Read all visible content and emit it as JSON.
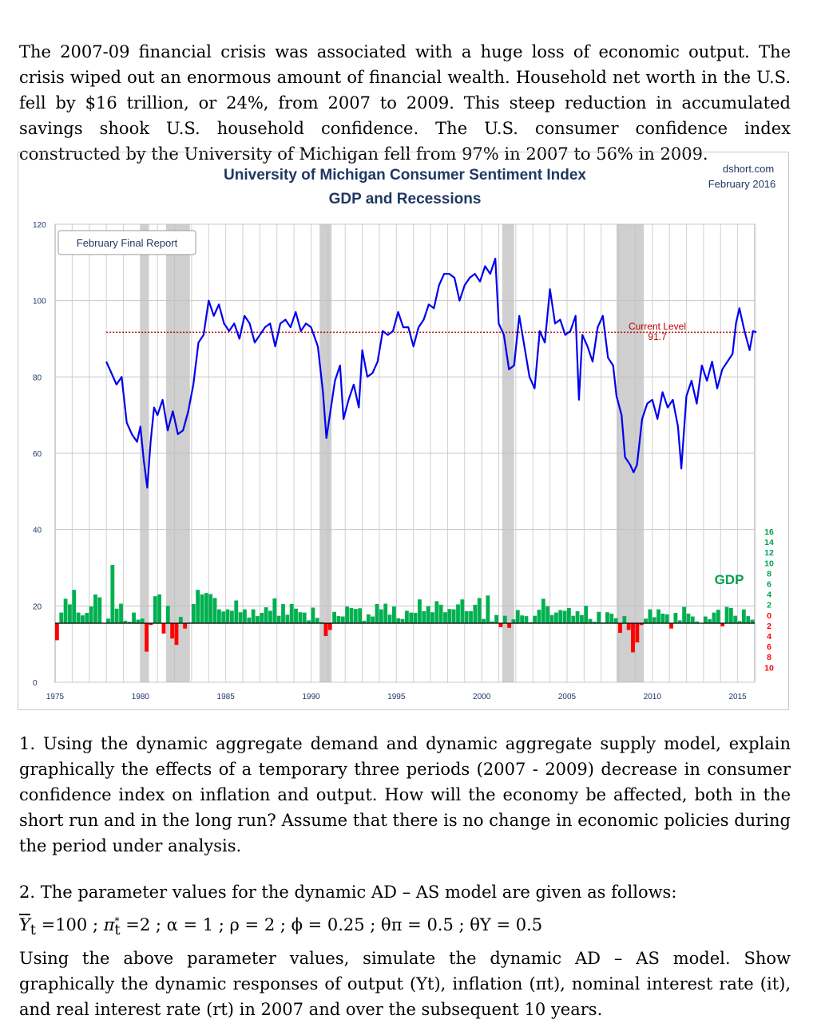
{
  "intro_text": "The 2007-09 financial crisis was associated with a huge loss of economic output. The crisis wiped out an enormous amount of financial wealth. Household net worth in the U.S. fell by $16 trillion, or 24%, from 2007 to 2009. This steep reduction in accumulated savings shook U.S. household confidence. The U.S. consumer confidence index constructed by the University of Michigan fell from 97% in 2007 to 56% in 2009.",
  "question1": "1. Using the dynamic aggregate demand and dynamic aggregate supply model, explain graphically the effects of a temporary three periods (2007 - 2009) decrease in consumer confidence index on inflation and output. How will the economy be affected, both in the short run and in the long run? Assume that there is no change in economic policies during the period under analysis.",
  "question2": {
    "heading": "2. The parameter values for the dynamic AD – AS model are given as follows:",
    "params": {
      "ybar": "Y",
      "ybar_sub": "t",
      "ybar_val": " =100 ; ",
      "pi_star": "π",
      "pi_star_sup": "*",
      "pi_star_sub": "t",
      "pi_star_val": " =2 ; α = 1 ; ρ = 2 ; ϕ = 0.25 ; θπ = 0.5 ; θY = 0.5"
    },
    "body": "Using the above parameter values, simulate the dynamic AD – AS model. Show graphically the dynamic responses of output (Yt), inflation (πt), nominal interest rate (it), and real interest rate (rt) in 2007 and over the subsequent 10 years."
  },
  "chart_data": {
    "type": "line",
    "title": "University of Michigan Consumer Sentiment Index",
    "subtitle": "GDP and Recessions",
    "source": "dshort.com",
    "date": "February 2016",
    "report_label": "February Final Report",
    "current_level_label": "Current Level",
    "current_level_value": "91.7",
    "gdp_label": "GDP",
    "ylim": [
      0,
      120
    ],
    "y_ticks": [
      "120",
      "100",
      "80",
      "60",
      "40",
      "20",
      "0"
    ],
    "xlim": [
      1975,
      2016
    ],
    "x_ticks": [
      "1975",
      "1980",
      "1985",
      "1990",
      "1995",
      "2000",
      "2005",
      "2010",
      "2015"
    ],
    "gdp_axis_ticks": [
      "16",
      "14",
      "12",
      "10",
      "8",
      "6",
      "4",
      "2",
      "0",
      "2",
      "4",
      "6",
      "8",
      "10"
    ],
    "recessions": [
      [
        1980.0,
        1980.5
      ],
      [
        1981.5,
        1982.9
      ],
      [
        1990.5,
        1991.2
      ],
      [
        2001.2,
        2001.9
      ],
      [
        2007.9,
        2009.5
      ]
    ],
    "sentiment": {
      "name": "Consumer Sentiment",
      "points": [
        [
          1978.0,
          84
        ],
        [
          1978.3,
          81
        ],
        [
          1978.6,
          78
        ],
        [
          1978.9,
          80
        ],
        [
          1979.2,
          68
        ],
        [
          1979.5,
          65
        ],
        [
          1979.8,
          63
        ],
        [
          1980.0,
          67
        ],
        [
          1980.2,
          58
        ],
        [
          1980.4,
          51
        ],
        [
          1980.6,
          63
        ],
        [
          1980.8,
          72
        ],
        [
          1981.0,
          70
        ],
        [
          1981.3,
          74
        ],
        [
          1981.6,
          66
        ],
        [
          1981.9,
          71
        ],
        [
          1982.2,
          65
        ],
        [
          1982.5,
          66
        ],
        [
          1982.8,
          71
        ],
        [
          1983.1,
          78
        ],
        [
          1983.4,
          89
        ],
        [
          1983.7,
          91
        ],
        [
          1984.0,
          100
        ],
        [
          1984.3,
          96
        ],
        [
          1984.6,
          99
        ],
        [
          1984.9,
          94
        ],
        [
          1985.2,
          92
        ],
        [
          1985.5,
          94
        ],
        [
          1985.8,
          90
        ],
        [
          1986.1,
          96
        ],
        [
          1986.4,
          94
        ],
        [
          1986.7,
          89
        ],
        [
          1987.0,
          91
        ],
        [
          1987.3,
          93
        ],
        [
          1987.6,
          94
        ],
        [
          1987.9,
          88
        ],
        [
          1988.2,
          94
        ],
        [
          1988.5,
          95
        ],
        [
          1988.8,
          93
        ],
        [
          1989.1,
          97
        ],
        [
          1989.4,
          92
        ],
        [
          1989.7,
          94
        ],
        [
          1990.0,
          93
        ],
        [
          1990.4,
          88
        ],
        [
          1990.7,
          76
        ],
        [
          1990.9,
          64
        ],
        [
          1991.1,
          70
        ],
        [
          1991.4,
          79
        ],
        [
          1991.7,
          83
        ],
        [
          1991.9,
          69
        ],
        [
          1992.2,
          74
        ],
        [
          1992.5,
          78
        ],
        [
          1992.8,
          72
        ],
        [
          1993.0,
          87
        ],
        [
          1993.3,
          80
        ],
        [
          1993.6,
          81
        ],
        [
          1993.9,
          84
        ],
        [
          1994.2,
          92
        ],
        [
          1994.5,
          91
        ],
        [
          1994.8,
          92
        ],
        [
          1995.1,
          97
        ],
        [
          1995.4,
          93
        ],
        [
          1995.7,
          93
        ],
        [
          1996.0,
          88
        ],
        [
          1996.3,
          93
        ],
        [
          1996.6,
          95
        ],
        [
          1996.9,
          99
        ],
        [
          1997.2,
          98
        ],
        [
          1997.5,
          104
        ],
        [
          1997.8,
          107
        ],
        [
          1998.1,
          107
        ],
        [
          1998.4,
          106
        ],
        [
          1998.7,
          100
        ],
        [
          1999.0,
          104
        ],
        [
          1999.3,
          106
        ],
        [
          1999.6,
          107
        ],
        [
          1999.9,
          105
        ],
        [
          2000.2,
          109
        ],
        [
          2000.5,
          107
        ],
        [
          2000.8,
          111
        ],
        [
          2001.0,
          94
        ],
        [
          2001.3,
          91
        ],
        [
          2001.6,
          82
        ],
        [
          2001.9,
          83
        ],
        [
          2002.2,
          96
        ],
        [
          2002.5,
          88
        ],
        [
          2002.8,
          80
        ],
        [
          2003.1,
          77
        ],
        [
          2003.4,
          92
        ],
        [
          2003.7,
          89
        ],
        [
          2004.0,
          103
        ],
        [
          2004.3,
          94
        ],
        [
          2004.6,
          95
        ],
        [
          2004.9,
          91
        ],
        [
          2005.2,
          92
        ],
        [
          2005.5,
          96
        ],
        [
          2005.7,
          74
        ],
        [
          2005.9,
          91
        ],
        [
          2006.2,
          88
        ],
        [
          2006.5,
          84
        ],
        [
          2006.8,
          93
        ],
        [
          2007.1,
          96
        ],
        [
          2007.4,
          85
        ],
        [
          2007.7,
          83
        ],
        [
          2007.9,
          75
        ],
        [
          2008.2,
          70
        ],
        [
          2008.4,
          59
        ],
        [
          2008.7,
          57
        ],
        [
          2008.9,
          55
        ],
        [
          2009.1,
          57
        ],
        [
          2009.4,
          69
        ],
        [
          2009.7,
          73
        ],
        [
          2010.0,
          74
        ],
        [
          2010.3,
          69
        ],
        [
          2010.6,
          76
        ],
        [
          2010.9,
          72
        ],
        [
          2011.2,
          74
        ],
        [
          2011.5,
          67
        ],
        [
          2011.7,
          56
        ],
        [
          2012.0,
          75
        ],
        [
          2012.3,
          79
        ],
        [
          2012.6,
          73
        ],
        [
          2012.9,
          83
        ],
        [
          2013.2,
          79
        ],
        [
          2013.5,
          84
        ],
        [
          2013.8,
          77
        ],
        [
          2014.1,
          82
        ],
        [
          2014.4,
          84
        ],
        [
          2014.7,
          86
        ],
        [
          2014.9,
          94
        ],
        [
          2015.1,
          98
        ],
        [
          2015.4,
          92
        ],
        [
          2015.7,
          87
        ],
        [
          2015.9,
          92
        ],
        [
          2016.1,
          91.7
        ]
      ]
    },
    "gdp_growth": {
      "name": "GDP",
      "values": [
        [
          1975.0,
          -4.8
        ],
        [
          1975.25,
          3.0
        ],
        [
          1975.5,
          6.9
        ],
        [
          1975.75,
          5.3
        ],
        [
          1976.0,
          9.4
        ],
        [
          1976.25,
          3.0
        ],
        [
          1976.5,
          2.2
        ],
        [
          1976.75,
          2.9
        ],
        [
          1977.0,
          4.7
        ],
        [
          1977.25,
          8.1
        ],
        [
          1977.5,
          7.3
        ],
        [
          1977.75,
          0.0
        ],
        [
          1978.0,
          1.3
        ],
        [
          1978.25,
          16.4
        ],
        [
          1978.5,
          4.1
        ],
        [
          1978.75,
          5.5
        ],
        [
          1979.0,
          0.7
        ],
        [
          1979.25,
          0.4
        ],
        [
          1979.5,
          3.0
        ],
        [
          1979.75,
          1.0
        ],
        [
          1980.0,
          1.3
        ],
        [
          1980.25,
          -8.0
        ],
        [
          1980.5,
          -0.5
        ],
        [
          1980.75,
          7.6
        ],
        [
          1981.0,
          8.1
        ],
        [
          1981.25,
          -2.9
        ],
        [
          1981.5,
          4.9
        ],
        [
          1981.75,
          -4.3
        ],
        [
          1982.0,
          -6.1
        ],
        [
          1982.25,
          1.8
        ],
        [
          1982.5,
          -1.5
        ],
        [
          1982.75,
          0.2
        ],
        [
          1983.0,
          5.4
        ],
        [
          1983.25,
          9.4
        ],
        [
          1983.5,
          8.1
        ],
        [
          1983.75,
          8.5
        ],
        [
          1984.0,
          8.2
        ],
        [
          1984.25,
          7.1
        ],
        [
          1984.5,
          3.9
        ],
        [
          1984.75,
          3.3
        ],
        [
          1985.0,
          3.9
        ],
        [
          1985.25,
          3.5
        ],
        [
          1985.5,
          6.4
        ],
        [
          1985.75,
          3.1
        ],
        [
          1986.0,
          3.9
        ],
        [
          1986.25,
          1.6
        ],
        [
          1986.5,
          3.9
        ],
        [
          1986.75,
          2.0
        ],
        [
          1987.0,
          2.9
        ],
        [
          1987.25,
          4.5
        ],
        [
          1987.5,
          3.5
        ],
        [
          1987.75,
          7.0
        ],
        [
          1988.0,
          2.1
        ],
        [
          1988.25,
          5.4
        ],
        [
          1988.5,
          2.4
        ],
        [
          1988.75,
          5.4
        ],
        [
          1989.0,
          4.1
        ],
        [
          1989.25,
          3.1
        ],
        [
          1989.5,
          3.0
        ],
        [
          1989.75,
          0.8
        ],
        [
          1990.0,
          4.4
        ],
        [
          1990.25,
          1.5
        ],
        [
          1990.5,
          0.3
        ],
        [
          1990.75,
          -3.6
        ],
        [
          1991.0,
          -1.9
        ],
        [
          1991.25,
          3.2
        ],
        [
          1991.5,
          2.0
        ],
        [
          1991.75,
          1.9
        ],
        [
          1992.0,
          4.7
        ],
        [
          1992.25,
          4.3
        ],
        [
          1992.5,
          4.0
        ],
        [
          1992.75,
          4.2
        ],
        [
          1993.0,
          0.7
        ],
        [
          1993.25,
          2.5
        ],
        [
          1993.5,
          1.9
        ],
        [
          1993.75,
          5.4
        ],
        [
          1994.0,
          3.9
        ],
        [
          1994.25,
          5.5
        ],
        [
          1994.5,
          2.4
        ],
        [
          1994.75,
          4.7
        ],
        [
          1995.0,
          1.4
        ],
        [
          1995.25,
          1.2
        ],
        [
          1995.5,
          3.5
        ],
        [
          1995.75,
          3.0
        ],
        [
          1996.0,
          2.9
        ],
        [
          1996.25,
          6.7
        ],
        [
          1996.5,
          3.4
        ],
        [
          1996.75,
          4.8
        ],
        [
          1997.0,
          3.1
        ],
        [
          1997.25,
          6.2
        ],
        [
          1997.5,
          5.2
        ],
        [
          1997.75,
          3.1
        ],
        [
          1998.0,
          4.0
        ],
        [
          1998.25,
          3.9
        ],
        [
          1998.5,
          5.3
        ],
        [
          1998.75,
          6.7
        ],
        [
          1999.0,
          3.4
        ],
        [
          1999.25,
          3.4
        ],
        [
          1999.5,
          5.2
        ],
        [
          1999.75,
          7.1
        ],
        [
          2000.0,
          1.2
        ],
        [
          2000.25,
          7.8
        ],
        [
          2000.5,
          0.5
        ],
        [
          2000.75,
          2.3
        ],
        [
          2001.0,
          -1.1
        ],
        [
          2001.25,
          2.1
        ],
        [
          2001.5,
          -1.3
        ],
        [
          2001.75,
          1.1
        ],
        [
          2002.0,
          3.7
        ],
        [
          2002.25,
          2.2
        ],
        [
          2002.5,
          2.0
        ],
        [
          2002.75,
          0.3
        ],
        [
          2003.0,
          2.1
        ],
        [
          2003.25,
          3.8
        ],
        [
          2003.5,
          6.9
        ],
        [
          2003.75,
          4.8
        ],
        [
          2004.0,
          2.3
        ],
        [
          2004.25,
          3.0
        ],
        [
          2004.5,
          3.7
        ],
        [
          2004.75,
          3.5
        ],
        [
          2005.0,
          4.3
        ],
        [
          2005.25,
          2.1
        ],
        [
          2005.5,
          3.4
        ],
        [
          2005.75,
          2.3
        ],
        [
          2006.0,
          4.9
        ],
        [
          2006.25,
          1.2
        ],
        [
          2006.5,
          0.4
        ],
        [
          2006.75,
          3.2
        ],
        [
          2007.0,
          0.2
        ],
        [
          2007.25,
          3.1
        ],
        [
          2007.5,
          2.7
        ],
        [
          2007.75,
          1.4
        ],
        [
          2008.0,
          -2.7
        ],
        [
          2008.25,
          2.0
        ],
        [
          2008.5,
          -1.9
        ],
        [
          2008.75,
          -8.2
        ],
        [
          2009.0,
          -5.4
        ],
        [
          2009.25,
          -0.5
        ],
        [
          2009.5,
          1.3
        ],
        [
          2009.75,
          3.9
        ],
        [
          2010.0,
          1.7
        ],
        [
          2010.25,
          3.9
        ],
        [
          2010.5,
          2.7
        ],
        [
          2010.75,
          2.5
        ],
        [
          2011.0,
          -1.5
        ],
        [
          2011.25,
          2.9
        ],
        [
          2011.5,
          0.8
        ],
        [
          2011.75,
          4.6
        ],
        [
          2012.0,
          2.7
        ],
        [
          2012.25,
          1.9
        ],
        [
          2012.5,
          0.5
        ],
        [
          2012.75,
          0.1
        ],
        [
          2013.0,
          1.9
        ],
        [
          2013.25,
          1.1
        ],
        [
          2013.5,
          3.0
        ],
        [
          2013.75,
          3.8
        ],
        [
          2014.0,
          -0.9
        ],
        [
          2014.25,
          4.6
        ],
        [
          2014.5,
          4.3
        ],
        [
          2014.75,
          2.1
        ],
        [
          2015.0,
          0.6
        ],
        [
          2015.25,
          3.9
        ],
        [
          2015.5,
          2.0
        ],
        [
          2015.75,
          1.0
        ]
      ]
    }
  }
}
